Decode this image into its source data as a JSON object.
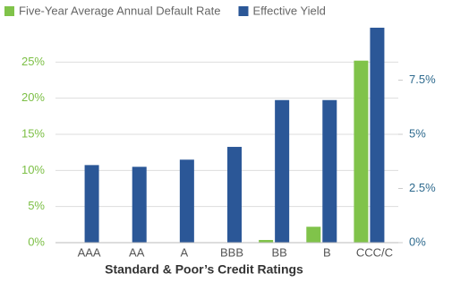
{
  "chart_data": {
    "type": "bar",
    "x_label": "Standard & Poor’s Credit Ratings",
    "categories": [
      "AAA",
      "AA",
      "A",
      "BBB",
      "BB",
      "B",
      "CCC/C"
    ],
    "series": [
      {
        "name": "Five-Year Average Annual Default Rate",
        "color": "#80c34a",
        "values": [
          0,
          0,
          0,
          0,
          0.37,
          2.2,
          25.2
        ]
      },
      {
        "name": "Effective Yield",
        "color": "#2b5797",
        "axis": "y2",
        "values": [
          3.58,
          3.5,
          3.83,
          4.42,
          6.58,
          6.58,
          9.92
        ]
      }
    ],
    "ylim": [
      0,
      30
    ],
    "yticks": [
      {
        "value": 0,
        "label": "0%"
      },
      {
        "value": 5,
        "label": "5%"
      },
      {
        "value": 10,
        "label": "10%"
      },
      {
        "value": 15,
        "label": "15%"
      },
      {
        "value": 20,
        "label": "20%"
      },
      {
        "value": 25,
        "label": "25%"
      }
    ],
    "y2lim": [
      0,
      10
    ],
    "y2ticks": [
      {
        "value": 0,
        "label": "0%"
      },
      {
        "value": 2.5,
        "label": "2.5%"
      },
      {
        "value": 5,
        "label": "5%"
      },
      {
        "value": 7.5,
        "label": "7.5%"
      }
    ],
    "grid": true
  }
}
